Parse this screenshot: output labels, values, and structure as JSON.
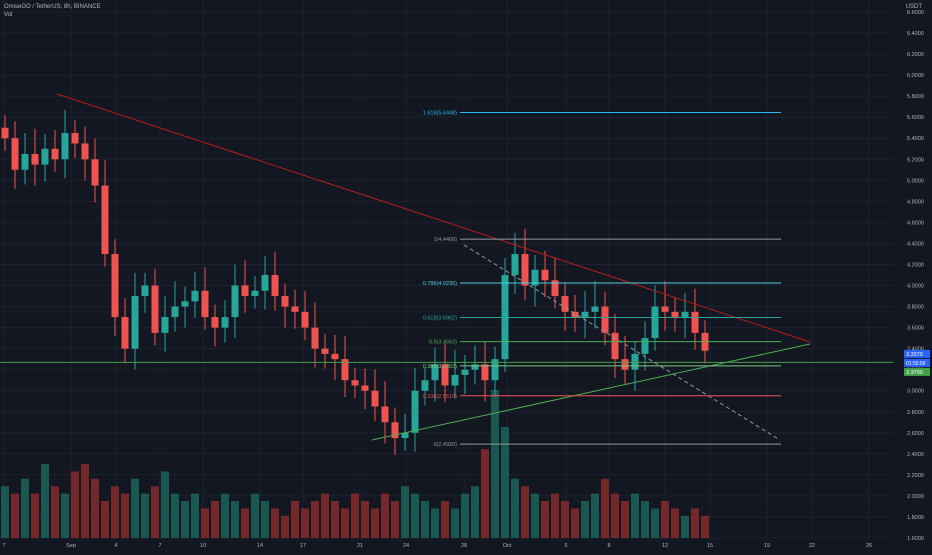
{
  "header": {
    "symbol_line": "OmiseGO / TetherUS, 8h, BINANCE",
    "indicator": "Vol",
    "currency": "USDT"
  },
  "price_badges": {
    "upper": "3.3379",
    "middle": "01:55:56",
    "lower": "3.3790"
  },
  "colors": {
    "background": "#131722",
    "up": "#26a69a",
    "down": "#ef5350",
    "resistance": "#b71c1c",
    "support": "#4caf50",
    "horizontal": "#43a047",
    "fib_top": "#29b6f6"
  },
  "chart_data": {
    "type": "candlestick",
    "x_ticks": [
      "7",
      "Sep",
      "4",
      "7",
      "10",
      "14",
      "17",
      "21",
      "24",
      "28",
      "Oct",
      "5",
      "8",
      "12",
      "15",
      "19",
      "22",
      "26"
    ],
    "y_ticks": [
      "1.6000",
      "1.8000",
      "2.0000",
      "2.2000",
      "2.4000",
      "2.6000",
      "2.8000",
      "3.0000",
      "3.2000",
      "3.4000",
      "3.6000",
      "3.8000",
      "4.0000",
      "4.2000",
      "4.4000",
      "4.6000",
      "4.8000",
      "5.0000",
      "5.2000",
      "5.4000",
      "5.6000",
      "5.8000",
      "6.0000",
      "6.2000",
      "6.4000",
      "6.6000"
    ],
    "ylim": [
      1.6,
      6.6
    ],
    "fib_levels": [
      {
        "label": "0(2.4920)",
        "value": 2.492
      },
      {
        "label": "0.236(2.9519)",
        "value": 2.9519
      },
      {
        "label": "0.382(3.2363)",
        "value": 3.2363
      },
      {
        "label": "0.5(3.4663)",
        "value": 3.4663
      },
      {
        "label": "0.618(3.6962)",
        "value": 3.6962
      },
      {
        "label": "0.786(4.0236)",
        "value": 4.0236
      },
      {
        "label": "1(4.4406)",
        "value": 4.4406
      },
      {
        "label": "1.618(5.6448)",
        "value": 5.6448
      }
    ],
    "price_path": [
      5.4,
      5.1,
      5.25,
      5.15,
      5.3,
      5.2,
      5.45,
      5.35,
      5.2,
      4.95,
      4.3,
      3.7,
      3.4,
      3.9,
      4.0,
      3.55,
      3.7,
      3.8,
      3.85,
      3.95,
      3.7,
      3.6,
      3.7,
      4.0,
      3.9,
      3.95,
      4.1,
      3.9,
      3.8,
      3.75,
      3.6,
      3.4,
      3.35,
      3.3,
      3.1,
      3.05,
      3.0,
      2.85,
      2.7,
      2.55,
      2.6,
      3.0,
      3.1,
      3.25,
      3.05,
      3.15,
      3.2,
      3.25,
      3.1,
      3.3,
      4.1,
      4.3,
      4.0,
      4.15,
      4.05,
      3.9,
      3.75,
      3.7,
      3.75,
      3.8,
      3.55,
      3.3,
      3.2,
      3.35,
      3.5,
      3.8,
      3.75,
      3.7,
      3.75,
      3.55,
      3.38
    ],
    "volume": [
      0.35,
      0.3,
      0.4,
      0.3,
      0.5,
      0.35,
      0.3,
      0.45,
      0.5,
      0.4,
      0.25,
      0.35,
      0.3,
      0.4,
      0.3,
      0.35,
      0.45,
      0.3,
      0.25,
      0.3,
      0.2,
      0.25,
      0.3,
      0.25,
      0.2,
      0.3,
      0.25,
      0.2,
      0.15,
      0.25,
      0.2,
      0.25,
      0.3,
      0.25,
      0.2,
      0.3,
      0.25,
      0.2,
      0.3,
      0.25,
      0.35,
      0.3,
      0.25,
      0.2,
      0.25,
      0.2,
      0.3,
      0.35,
      0.6,
      1.0,
      0.75,
      0.4,
      0.35,
      0.3,
      0.25,
      0.3,
      0.25,
      0.2,
      0.25,
      0.3,
      0.4,
      0.3,
      0.25,
      0.3,
      0.25,
      0.2,
      0.25,
      0.2,
      0.15,
      0.2,
      0.15
    ]
  }
}
